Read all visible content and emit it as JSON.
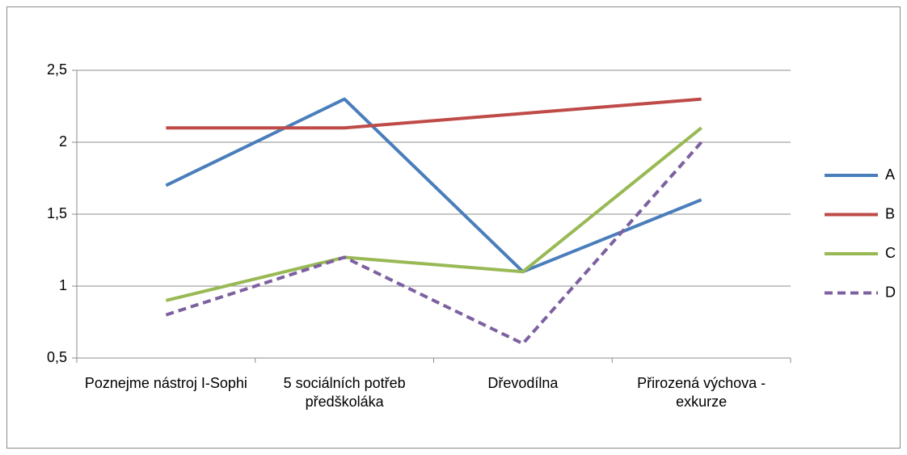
{
  "chart_data": {
    "type": "line",
    "categories": [
      "Poznejme nástroj I-Sophi",
      "5 sociálních potřeb předškoláka",
      "Dřevodílna",
      "Přirozená výchova - exkurze"
    ],
    "series": [
      {
        "name": "A",
        "color": "#4a7ebb",
        "values": [
          1.7,
          2.3,
          1.1,
          1.6
        ]
      },
      {
        "name": "B",
        "color": "#be4b48",
        "values": [
          2.1,
          2.1,
          2.2,
          2.3
        ]
      },
      {
        "name": "C",
        "color": "#98b954",
        "values": [
          0.9,
          1.2,
          1.1,
          2.1
        ]
      },
      {
        "name": "D",
        "color": "#7d60a0",
        "values": [
          0.8,
          1.2,
          0.6,
          2.0
        ],
        "dashed": true
      }
    ],
    "ylim": [
      0.5,
      2.5
    ],
    "yticks": [
      {
        "value": 0.5,
        "label": "0,5"
      },
      1,
      {
        "value": 1.5,
        "label": "1,5"
      },
      2,
      {
        "value": 2.5,
        "label": "2,5"
      }
    ],
    "grid": true,
    "legend": "right"
  }
}
